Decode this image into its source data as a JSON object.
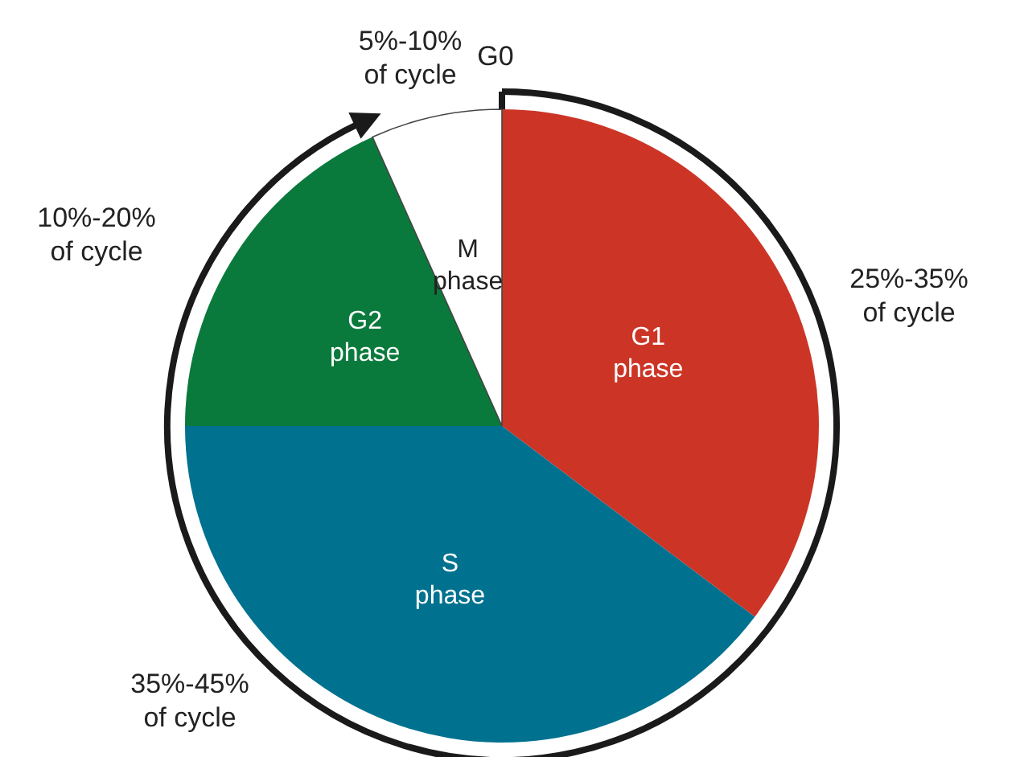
{
  "chart_data": {
    "type": "pie",
    "categories": [
      "G1 phase",
      "S phase",
      "G2 phase",
      "M phase"
    ],
    "values": [
      35.3,
      39.7,
      18.3,
      6.7
    ],
    "colors": [
      "#cc3526",
      "#00718f",
      "#0a7a3c",
      "#ffffff"
    ],
    "annotations": [
      "5%-10% of cycle",
      "G0",
      "10%-20% of cycle",
      "25%-35% of cycle",
      "35%-45% of cycle"
    ],
    "legend": false
  }
}
